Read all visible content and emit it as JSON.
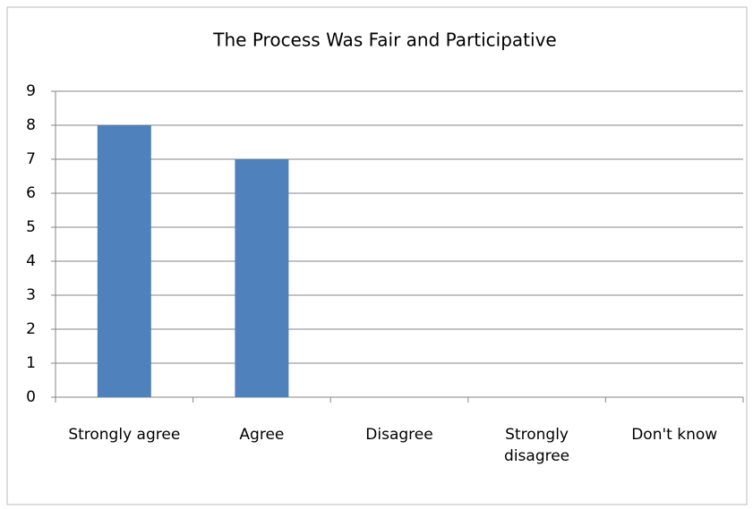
{
  "chart_data": {
    "type": "bar",
    "title": "The Process Was Fair and Participative",
    "categories": [
      "Strongly agree",
      "Agree",
      "Disagree",
      "Strongly disagree",
      "Don't know"
    ],
    "values": [
      8,
      7,
      0,
      0,
      0
    ],
    "color": "#4f81bd",
    "ylim": [
      0,
      9
    ],
    "yticks": [
      0,
      1,
      2,
      3,
      4,
      5,
      6,
      7,
      8,
      9
    ],
    "grid": true
  }
}
